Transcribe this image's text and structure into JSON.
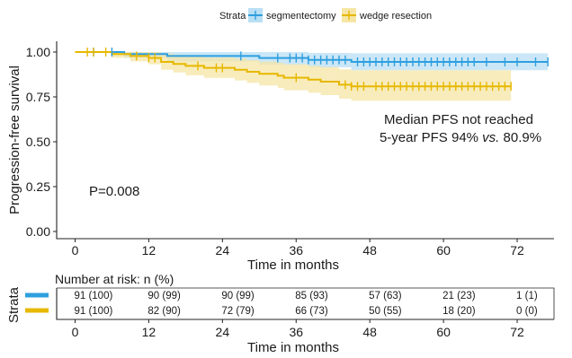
{
  "chart_data": {
    "type": "line",
    "title": "",
    "xlabel": "Time in months",
    "ylabel": "Progression-free survival",
    "xlim": [
      -3,
      78
    ],
    "ylim": [
      -0.04,
      1.06
    ],
    "x_ticks": [
      0,
      12,
      24,
      36,
      48,
      60,
      72
    ],
    "y_ticks": [
      0.0,
      0.25,
      0.5,
      0.75,
      1.0
    ],
    "y_tick_labels": [
      "0.00",
      "0.25",
      "0.50",
      "0.75",
      "1.00"
    ],
    "grid": false,
    "legend": {
      "title": "Strata",
      "position": "top",
      "entries": [
        "segmentectomy",
        "wedge resection"
      ]
    },
    "annotations": {
      "median": "Median PFS not reached",
      "fiveyear_prefix": "5-year PFS 94% ",
      "fiveyear_italic": "vs.",
      "fiveyear_suffix": " 80.9%",
      "pvalue": "P=0.008"
    },
    "series": [
      {
        "name": "segmentectomy",
        "color": "#2e9fdf",
        "band_color": "#b9dff4",
        "steps": [
          [
            0,
            1.0
          ],
          [
            8,
            0.989
          ],
          [
            15,
            0.978
          ],
          [
            30,
            0.967
          ],
          [
            38,
            0.956
          ],
          [
            45,
            0.945
          ],
          [
            77,
            0.945
          ]
        ],
        "ci_lower": [
          [
            0,
            1.0
          ],
          [
            8,
            0.967
          ],
          [
            15,
            0.948
          ],
          [
            30,
            0.93
          ],
          [
            38,
            0.915
          ],
          [
            45,
            0.899
          ],
          [
            77,
            0.899
          ]
        ],
        "ci_upper": [
          [
            0,
            1.0
          ],
          [
            8,
            1.0
          ],
          [
            15,
            1.0
          ],
          [
            30,
            1.0
          ],
          [
            38,
            0.995
          ],
          [
            45,
            0.993
          ],
          [
            77,
            0.993
          ]
        ],
        "censor_x": [
          3,
          6,
          27,
          33,
          35,
          36,
          37,
          38,
          39,
          40,
          41,
          42,
          43,
          44,
          46,
          47,
          48,
          49,
          50,
          51,
          52,
          53,
          54,
          55,
          56,
          57,
          58,
          59,
          60,
          61,
          62,
          63,
          64,
          65,
          67,
          70,
          72,
          75,
          77
        ]
      },
      {
        "name": "wedge resection",
        "color": "#e7b800",
        "band_color": "#f6e6a6",
        "steps": [
          [
            0,
            1.0
          ],
          [
            6,
            0.989
          ],
          [
            9,
            0.978
          ],
          [
            12,
            0.967
          ],
          [
            14,
            0.945
          ],
          [
            16,
            0.934
          ],
          [
            18,
            0.923
          ],
          [
            21,
            0.912
          ],
          [
            26,
            0.901
          ],
          [
            28,
            0.89
          ],
          [
            30,
            0.879
          ],
          [
            33,
            0.868
          ],
          [
            34,
            0.857
          ],
          [
            38,
            0.846
          ],
          [
            40,
            0.835
          ],
          [
            43,
            0.818
          ],
          [
            45,
            0.809
          ],
          [
            71,
            0.809
          ]
        ],
        "ci_lower": [
          [
            0,
            1.0
          ],
          [
            6,
            0.968
          ],
          [
            9,
            0.948
          ],
          [
            12,
            0.932
          ],
          [
            14,
            0.901
          ],
          [
            16,
            0.886
          ],
          [
            18,
            0.87
          ],
          [
            21,
            0.856
          ],
          [
            26,
            0.842
          ],
          [
            28,
            0.828
          ],
          [
            30,
            0.814
          ],
          [
            33,
            0.8
          ],
          [
            34,
            0.787
          ],
          [
            38,
            0.773
          ],
          [
            40,
            0.76
          ],
          [
            43,
            0.74
          ],
          [
            45,
            0.729
          ],
          [
            71,
            0.729
          ]
        ],
        "ci_upper": [
          [
            0,
            1.0
          ],
          [
            6,
            1.0
          ],
          [
            9,
            1.0
          ],
          [
            12,
            1.0
          ],
          [
            14,
            0.992
          ],
          [
            16,
            0.984
          ],
          [
            18,
            0.977
          ],
          [
            21,
            0.97
          ],
          [
            26,
            0.963
          ],
          [
            28,
            0.955
          ],
          [
            30,
            0.947
          ],
          [
            33,
            0.94
          ],
          [
            34,
            0.932
          ],
          [
            38,
            0.924
          ],
          [
            40,
            0.916
          ],
          [
            43,
            0.903
          ],
          [
            45,
            0.898
          ],
          [
            71,
            0.898
          ]
        ],
        "censor_x": [
          2,
          3,
          5,
          10,
          12,
          13,
          20,
          23,
          24,
          36,
          44,
          45,
          46,
          47,
          49,
          50,
          51,
          52,
          53,
          54,
          55,
          56,
          57,
          58,
          59,
          60,
          61,
          62,
          63,
          64,
          65,
          66,
          67,
          68,
          69,
          70,
          71
        ]
      }
    ]
  },
  "risk_table": {
    "title": "Number at risk: n (%)",
    "strata_label": "Strata",
    "xlabel": "Time in months",
    "x_ticks": [
      0,
      12,
      24,
      36,
      48,
      60,
      72
    ],
    "rows": [
      {
        "name": "segmentectomy",
        "color": "#2e9fdf",
        "cells": [
          "91 (100)",
          "90 (99)",
          "90 (99)",
          "85 (93)",
          "57 (63)",
          "21 (23)",
          "1 (1)"
        ]
      },
      {
        "name": "wedge resection",
        "color": "#e7b800",
        "cells": [
          "91 (100)",
          "82 (90)",
          "72 (79)",
          "66 (73)",
          "50 (55)",
          "18 (20)",
          "0 (0)"
        ]
      }
    ]
  }
}
